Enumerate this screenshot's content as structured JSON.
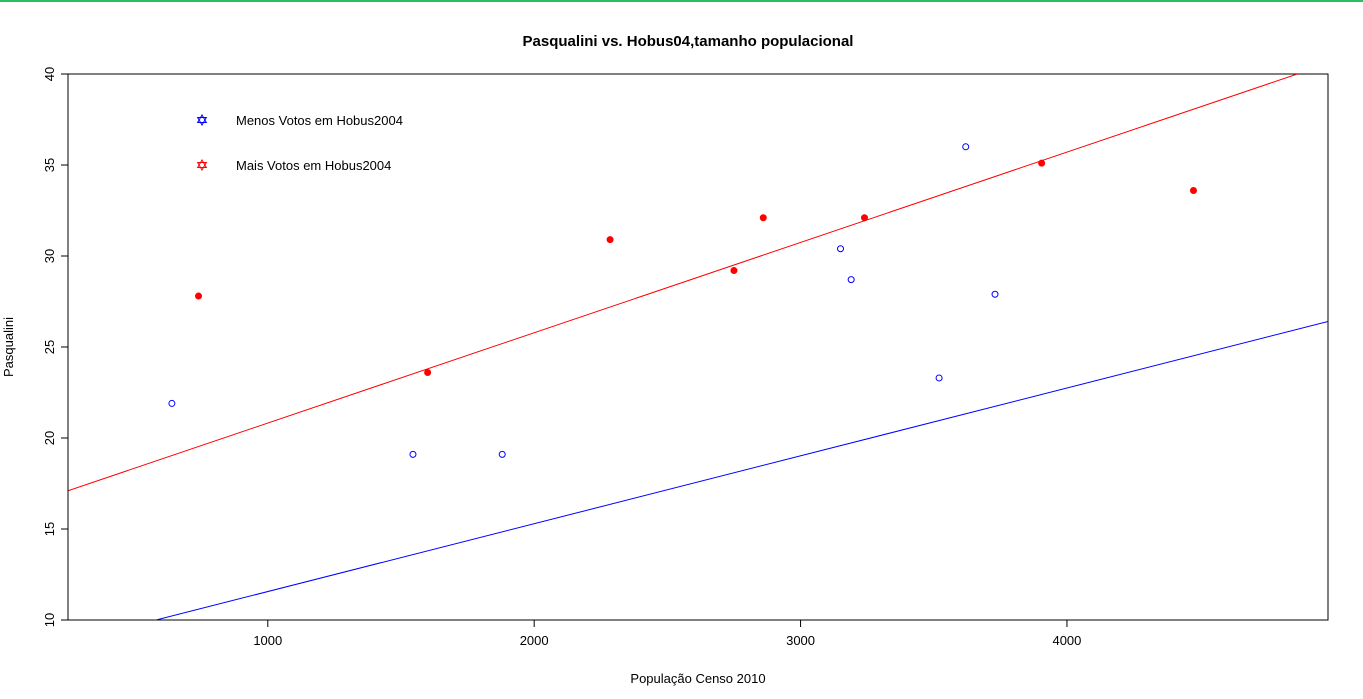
{
  "chart_data": {
    "type": "scatter",
    "title": "Pasqualini vs. Hobus04,tamanho populacional",
    "xlabel": "População Censo 2010",
    "ylabel": "Pasqualini",
    "xlim": [
      250,
      4980
    ],
    "ylim": [
      10,
      40
    ],
    "x_ticks": [
      1000,
      2000,
      3000,
      4000
    ],
    "y_ticks": [
      10,
      15,
      20,
      25,
      30,
      35,
      40
    ],
    "grid": false,
    "legend_position": "top-left",
    "series": [
      {
        "name": "Menos Votos em Hobus2004",
        "color": "#0000ff",
        "marker": "open-circle",
        "points": [
          {
            "x": 640,
            "y": 21.9
          },
          {
            "x": 1545,
            "y": 19.1
          },
          {
            "x": 1880,
            "y": 19.1
          },
          {
            "x": 3150,
            "y": 30.4
          },
          {
            "x": 3190,
            "y": 28.7
          },
          {
            "x": 3520,
            "y": 23.3
          },
          {
            "x": 3620,
            "y": 36.0
          },
          {
            "x": 3730,
            "y": 27.9
          }
        ],
        "fit_line": [
          {
            "x": 500,
            "y": 9.7
          },
          {
            "x": 4980,
            "y": 26.4
          }
        ]
      },
      {
        "name": "Mais Votos em Hobus2004",
        "color": "#ff0000",
        "marker": "filled-circle",
        "points": [
          {
            "x": 740,
            "y": 27.8
          },
          {
            "x": 1600,
            "y": 23.6
          },
          {
            "x": 2285,
            "y": 30.9
          },
          {
            "x": 2750,
            "y": 29.2
          },
          {
            "x": 2860,
            "y": 32.1
          },
          {
            "x": 3240,
            "y": 32.1
          },
          {
            "x": 3905,
            "y": 35.1
          },
          {
            "x": 4475,
            "y": 33.6
          }
        ],
        "fit_line": [
          {
            "x": 250,
            "y": 17.1
          },
          {
            "x": 4865,
            "y": 40.0
          }
        ]
      }
    ]
  }
}
